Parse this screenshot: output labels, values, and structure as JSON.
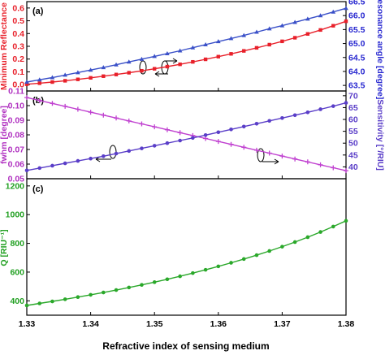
{
  "chart_data": [
    {
      "type": "line",
      "panel_label": "(a)",
      "x": [
        1.33,
        1.332,
        1.334,
        1.336,
        1.338,
        1.34,
        1.342,
        1.344,
        1.346,
        1.348,
        1.35,
        1.352,
        1.354,
        1.356,
        1.358,
        1.36,
        1.362,
        1.364,
        1.366,
        1.368,
        1.37,
        1.372,
        1.374,
        1.376,
        1.378,
        1.38
      ],
      "xlim": [
        1.33,
        1.38
      ],
      "xticks": [
        "1.33",
        "1.34",
        "1.35",
        "1.36",
        "1.37",
        "1.38"
      ],
      "ylabel_left": "Minimum Reflectance",
      "ylabel_right": "Resonance angle [degree]",
      "ylim_left": [
        -0.05,
        0.65
      ],
      "ylim_right": [
        63.3,
        66.5
      ],
      "yticks_left": [
        "0.0",
        "0.1",
        "0.2",
        "0.3",
        "0.4",
        "0.5",
        "0.6"
      ],
      "yticks_right": [
        "63.5",
        "64.0",
        "64.5",
        "65.0",
        "65.5",
        "66.0",
        "66.5"
      ],
      "series": [
        {
          "axis": "left",
          "color": "#e8202a",
          "marker": "square",
          "values": [
            0.003,
            0.011,
            0.02,
            0.03,
            0.041,
            0.053,
            0.066,
            0.079,
            0.093,
            0.108,
            0.124,
            0.141,
            0.159,
            0.178,
            0.198,
            0.219,
            0.241,
            0.264,
            0.288,
            0.313,
            0.339,
            0.367,
            0.397,
            0.428,
            0.461,
            0.496
          ]
        },
        {
          "axis": "right",
          "color": "#3a50c8",
          "marker": "triangle",
          "values": [
            63.62,
            63.7,
            63.78,
            63.87,
            63.96,
            64.05,
            64.14,
            64.24,
            64.34,
            64.44,
            64.54,
            64.64,
            64.74,
            64.85,
            64.96,
            65.07,
            65.18,
            65.29,
            65.41,
            65.53,
            65.64,
            65.76,
            65.88,
            66.0,
            66.13,
            66.26
          ]
        }
      ]
    },
    {
      "type": "line",
      "panel_label": "(b)",
      "x": [
        1.33,
        1.332,
        1.334,
        1.336,
        1.338,
        1.34,
        1.342,
        1.344,
        1.346,
        1.348,
        1.35,
        1.352,
        1.354,
        1.356,
        1.358,
        1.36,
        1.362,
        1.364,
        1.366,
        1.368,
        1.37,
        1.372,
        1.374,
        1.376,
        1.378,
        1.38
      ],
      "xlim": [
        1.33,
        1.38
      ],
      "xticks": [
        "1.33",
        "1.34",
        "1.35",
        "1.36",
        "1.37",
        "1.38"
      ],
      "ylabel_left": "fwhm [degree]",
      "ylabel_right": "Sensitivity [°/RIU]",
      "ylim_left": [
        0.05,
        0.11
      ],
      "ylim_right": [
        35,
        72
      ],
      "yticks_left": [
        "0.05",
        "0.06",
        "0.07",
        "0.08",
        "0.09",
        "0.10",
        "0.11"
      ],
      "yticks_right": [
        "40",
        "45",
        "50",
        "55",
        "60",
        "65",
        "70"
      ],
      "series": [
        {
          "axis": "left",
          "color": "#c040d0",
          "marker": "plus",
          "values": [
            0.1055,
            0.1035,
            0.1015,
            0.0995,
            0.0975,
            0.0955,
            0.0935,
            0.0915,
            0.0895,
            0.0875,
            0.0855,
            0.0835,
            0.0815,
            0.0795,
            0.0775,
            0.0755,
            0.0735,
            0.0715,
            0.0695,
            0.0675,
            0.0655,
            0.0635,
            0.0615,
            0.0595,
            0.0575,
            0.0555
          ]
        },
        {
          "axis": "right",
          "color": "#5a3ec8",
          "marker": "circle",
          "values": [
            38.5,
            39.5,
            40.5,
            41.5,
            42.5,
            43.5,
            44.5,
            45.6,
            46.7,
            47.8,
            48.9,
            50.0,
            51.1,
            52.2,
            53.4,
            54.6,
            55.8,
            57.0,
            58.2,
            59.4,
            60.6,
            61.8,
            63.0,
            64.3,
            65.6,
            67.0
          ]
        }
      ]
    },
    {
      "type": "line",
      "panel_label": "(c)",
      "x": [
        1.33,
        1.332,
        1.334,
        1.336,
        1.338,
        1.34,
        1.342,
        1.344,
        1.346,
        1.348,
        1.35,
        1.352,
        1.354,
        1.356,
        1.358,
        1.36,
        1.362,
        1.364,
        1.366,
        1.368,
        1.37,
        1.372,
        1.374,
        1.376,
        1.378,
        1.38
      ],
      "xlim": [
        1.33,
        1.38
      ],
      "xticks": [
        "1.33",
        "1.34",
        "1.35",
        "1.36",
        "1.37",
        "1.38"
      ],
      "xlabel": "Refractive index of sensing medium",
      "ylabel_left": "Q [RIU⁻¹]",
      "ylim_left": [
        300,
        1250
      ],
      "yticks_left": [
        "400",
        "600",
        "800",
        "1000",
        "1200"
      ],
      "series": [
        {
          "axis": "left",
          "color": "#2aa82a",
          "marker": "circle",
          "values": [
            368,
            382,
            396,
            411,
            426,
            442,
            458,
            475,
            493,
            511,
            530,
            550,
            571,
            593,
            616,
            640,
            665,
            691,
            718,
            747,
            777,
            809,
            843,
            879,
            917,
            957
          ]
        }
      ]
    }
  ],
  "colors": {
    "left_a": "#e8202a",
    "right_a": "#2828d0",
    "left_b": "#b030c0",
    "right_b": "#5a3ec8",
    "left_c": "#22a022"
  }
}
